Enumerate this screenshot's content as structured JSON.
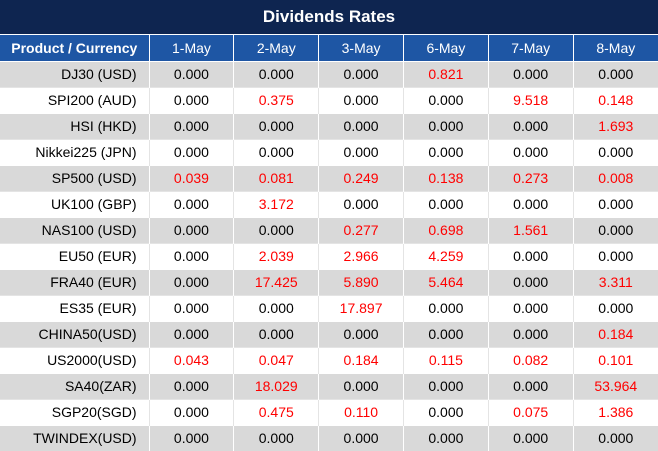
{
  "title": "Dividends Rates",
  "header": {
    "first": "Product / Currency",
    "dates": [
      "1-May",
      "2-May",
      "3-May",
      "6-May",
      "7-May",
      "8-May"
    ]
  },
  "rows": [
    {
      "label": "DJ30 (USD)",
      "values": [
        "0.000",
        "0.000",
        "0.000",
        "0.821",
        "0.000",
        "0.000"
      ]
    },
    {
      "label": "SPI200 (AUD)",
      "values": [
        "0.000",
        "0.375",
        "0.000",
        "0.000",
        "9.518",
        "0.148"
      ]
    },
    {
      "label": "HSI (HKD)",
      "values": [
        "0.000",
        "0.000",
        "0.000",
        "0.000",
        "0.000",
        "1.693"
      ]
    },
    {
      "label": "Nikkei225 (JPN)",
      "values": [
        "0.000",
        "0.000",
        "0.000",
        "0.000",
        "0.000",
        "0.000"
      ]
    },
    {
      "label": "SP500 (USD)",
      "values": [
        "0.039",
        "0.081",
        "0.249",
        "0.138",
        "0.273",
        "0.008"
      ]
    },
    {
      "label": "UK100 (GBP)",
      "values": [
        "0.000",
        "3.172",
        "0.000",
        "0.000",
        "0.000",
        "0.000"
      ]
    },
    {
      "label": "NAS100 (USD)",
      "values": [
        "0.000",
        "0.000",
        "0.277",
        "0.698",
        "1.561",
        "0.000"
      ]
    },
    {
      "label": "EU50 (EUR)",
      "values": [
        "0.000",
        "2.039",
        "2.966",
        "4.259",
        "0.000",
        "0.000"
      ]
    },
    {
      "label": "FRA40 (EUR)",
      "values": [
        "0.000",
        "17.425",
        "5.890",
        "5.464",
        "0.000",
        "3.311"
      ]
    },
    {
      "label": "ES35 (EUR)",
      "values": [
        "0.000",
        "0.000",
        "17.897",
        "0.000",
        "0.000",
        "0.000"
      ]
    },
    {
      "label": "CHINA50(USD)",
      "values": [
        "0.000",
        "0.000",
        "0.000",
        "0.000",
        "0.000",
        "0.184"
      ]
    },
    {
      "label": "US2000(USD)",
      "values": [
        "0.043",
        "0.047",
        "0.184",
        "0.115",
        "0.082",
        "0.101"
      ]
    },
    {
      "label": "SA40(ZAR)",
      "values": [
        "0.000",
        "18.029",
        "0.000",
        "0.000",
        "0.000",
        "53.964"
      ]
    },
    {
      "label": "SGP20(SGD)",
      "values": [
        "0.000",
        "0.475",
        "0.110",
        "0.000",
        "0.075",
        "1.386"
      ]
    },
    {
      "label": "TWINDEX(USD)",
      "values": [
        "0.000",
        "0.000",
        "0.000",
        "0.000",
        "0.000",
        "0.000"
      ]
    }
  ],
  "colors": {
    "title_bg": "#0e2550",
    "header_bg": "#1e56a4",
    "nonzero_text": "#ff0000",
    "zero_text": "#000000",
    "stripe_bg": "#d9d9d9"
  }
}
